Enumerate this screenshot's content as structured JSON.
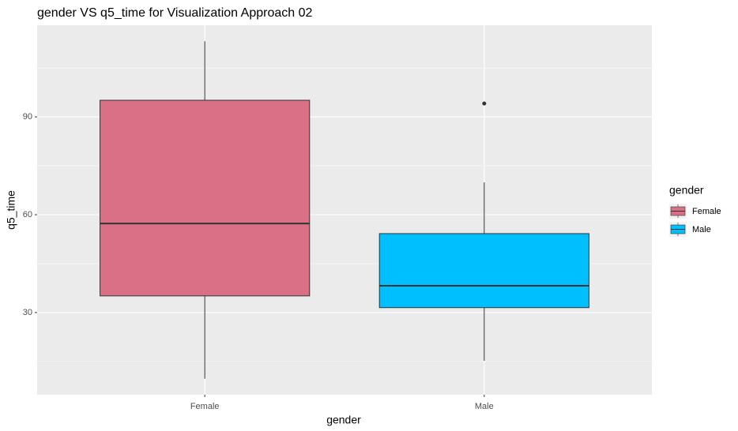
{
  "chart_data": {
    "type": "boxplot",
    "title": "gender VS q5_time for Visualization Approach 02",
    "x_label": "gender",
    "y_label": "q5_time",
    "categories": [
      "Female",
      "Male"
    ],
    "colors": [
      "#d97086",
      "#00bfff"
    ],
    "boxes": [
      {
        "min": 9.7,
        "q1": 35.1,
        "median": 57.3,
        "q3": 95.1,
        "max": 113.2,
        "outliers": []
      },
      {
        "min": 15.2,
        "q1": 31.5,
        "median": 38.2,
        "q3": 54.2,
        "max": 69.9,
        "outliers": [
          94.1
        ]
      }
    ],
    "ylim": [
      4.8,
      118.1
    ],
    "yticks": [
      30,
      60,
      90
    ],
    "minor_yticks": [
      15,
      45,
      75,
      105
    ],
    "grid": true,
    "legend": {
      "title": "gender",
      "position": "right"
    }
  }
}
